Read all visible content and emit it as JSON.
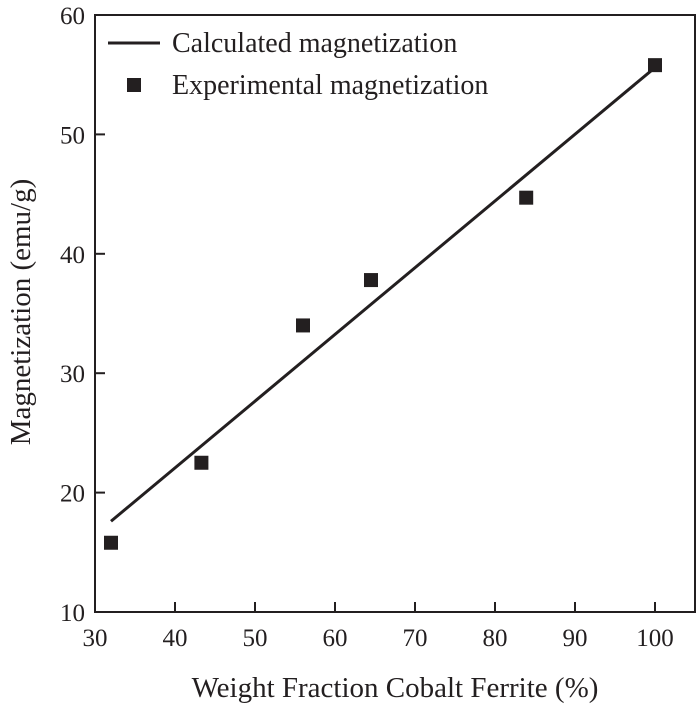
{
  "chart_data": {
    "type": "scatter",
    "title": "",
    "xlabel": "Weight Fraction Cobalt Ferrite (%)",
    "ylabel": "Magnetization (emu/g)",
    "xlim": [
      30,
      105
    ],
    "ylim": [
      10,
      60
    ],
    "xticks": [
      30,
      40,
      50,
      60,
      70,
      80,
      90,
      100
    ],
    "yticks": [
      10,
      20,
      30,
      40,
      50,
      60
    ],
    "grid": false,
    "legend_position": "top-left",
    "series": [
      {
        "name": "Calculated magnetization",
        "kind": "line",
        "x": [
          32,
          100
        ],
        "y": [
          17.6,
          55.6
        ]
      },
      {
        "name": "Experimental magnetization",
        "kind": "scatter",
        "marker": "square",
        "x": [
          32,
          43.3,
          56,
          64.5,
          83.9,
          100
        ],
        "y": [
          15.8,
          22.5,
          34.0,
          37.8,
          44.7,
          55.8
        ]
      }
    ],
    "colors": {
      "ink": "#231f20",
      "background": "#ffffff"
    }
  }
}
